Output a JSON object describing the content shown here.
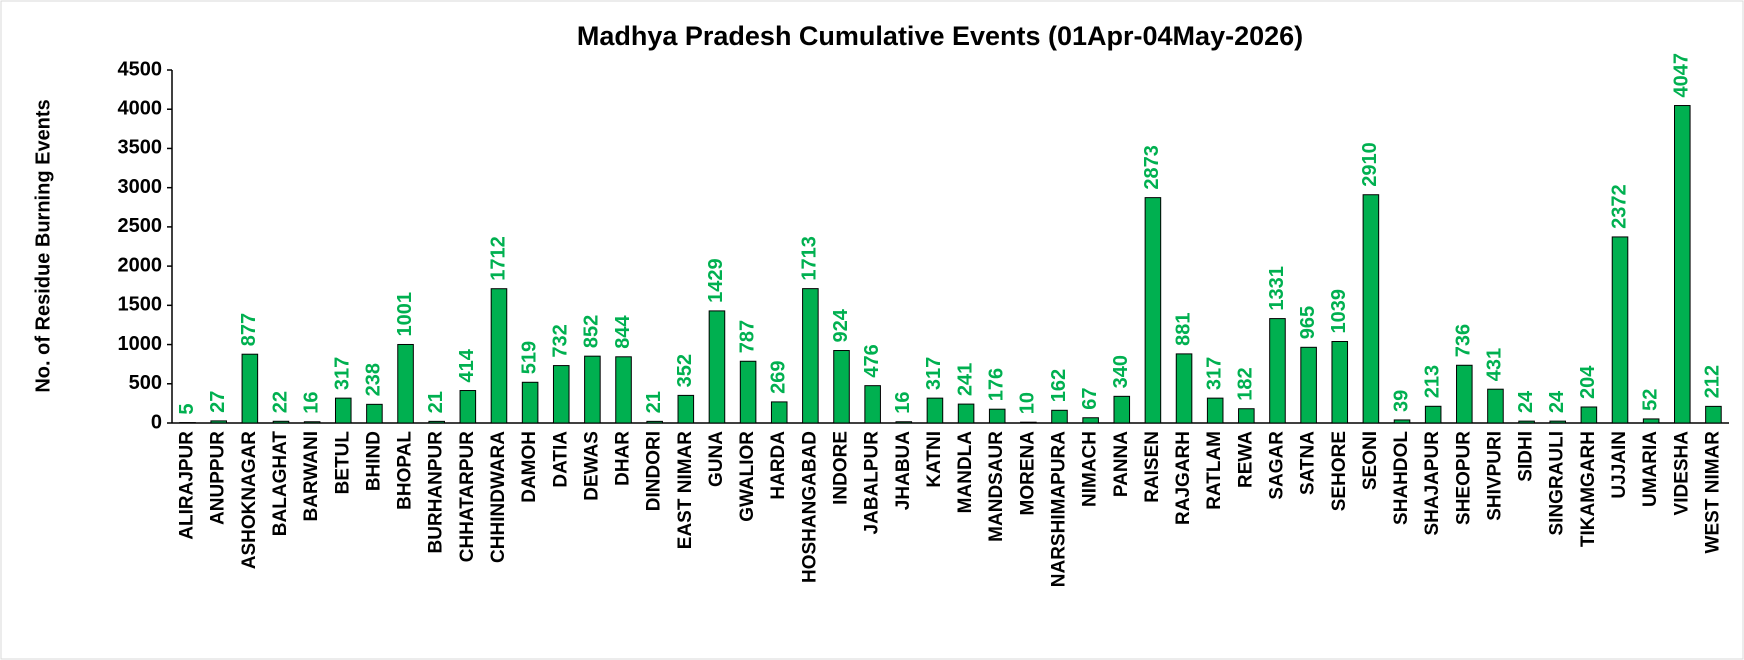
{
  "chart_data": {
    "type": "bar",
    "title": "Madhya Pradesh Cumulative Events (01Apr-04May-2026)",
    "y_label": "No. of Residue Burning Events",
    "categories": [
      "ALIRAJPUR",
      "ANUPPUR",
      "ASHOKNAGAR",
      "BALAGHAT",
      "BARWANI",
      "BETUL",
      "BHIND",
      "BHOPAL",
      "BURHANPUR",
      "CHHATARPUR",
      "CHHINDWARA",
      "DAMOH",
      "DATIA",
      "DEWAS",
      "DHAR",
      "DINDORI",
      "EAST NIMAR",
      "GUNA",
      "GWALIOR",
      "HARDA",
      "HOSHANGABAD",
      "INDORE",
      "JABALPUR",
      "JHABUA",
      "KATNI",
      "MANDLA",
      "MANDSAUR",
      "MORENA",
      "NARSHIMAPURA",
      "NIMACH",
      "PANNA",
      "RAISEN",
      "RAJGARH",
      "RATLAM",
      "REWA",
      "SAGAR",
      "SATNA",
      "SEHORE",
      "SEONI",
      "SHAHDOL",
      "SHAJAPUR",
      "SHEOPUR",
      "SHIVPURI",
      "SIDHI",
      "SINGRAULI",
      "TIKAMGARH",
      "UJJAIN",
      "UMARIA",
      "VIDESHA",
      "WEST NIMAR"
    ],
    "values": [
      5,
      27,
      877,
      22,
      16,
      317,
      238,
      1001,
      21,
      414,
      1712,
      519,
      732,
      852,
      844,
      21,
      352,
      1429,
      787,
      269,
      1713,
      924,
      476,
      16,
      317,
      241,
      176,
      10,
      162,
      67,
      340,
      2873,
      881,
      317,
      182,
      1331,
      965,
      1039,
      2910,
      39,
      213,
      736,
      431,
      24,
      24,
      204,
      2372,
      52,
      4047,
      212
    ],
    "color": "#00b050",
    "label_color": "#00b050",
    "ylim": [
      0,
      4500
    ],
    "yticks": [
      0,
      500,
      1000,
      1500,
      2000,
      2500,
      3000,
      3500,
      4000,
      4500
    ],
    "grid": false
  }
}
